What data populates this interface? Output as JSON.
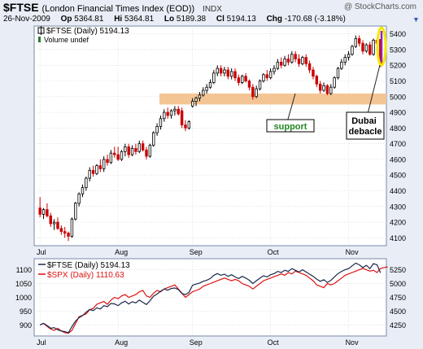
{
  "header": {
    "symbol": "$FTSE",
    "name": "(London Financial Times Index (EOD))",
    "exchange": "INDX",
    "watermark": "@ StockCharts.com",
    "date": "26-Nov-2009",
    "open_label": "Op",
    "open": "5364.81",
    "high_label": "Hi",
    "high": "5364.81",
    "low_label": "Lo",
    "low": "5189.38",
    "close_label": "Cl",
    "close": "5194.13",
    "change_label": "Chg",
    "change": "-170.68 (-3.18%)"
  },
  "colors": {
    "up": "#000000",
    "down": "#cc0000",
    "support_band": "#f4c594",
    "highlight": "#f2e900",
    "highlight_inner": "#9b1fb8",
    "spx_line": "#dd1111",
    "ftse_line": "#1a2a4a",
    "panel_bg": "#ffffff",
    "grid": "#c8d0dc",
    "annotation_green": "#228822"
  },
  "chart_data": [
    {
      "type": "candlestick",
      "title": "$FTSE (Daily) 5194.13",
      "legend": [
        "$FTSE (Daily) 5194.13",
        "Volume undef"
      ],
      "x_ticks": [
        "Jul",
        "Aug",
        "Sep",
        "Oct",
        "Nov"
      ],
      "y_ticks": [
        4100,
        4200,
        4300,
        4400,
        4500,
        4600,
        4700,
        4800,
        4900,
        5000,
        5100,
        5200,
        5300,
        5400
      ],
      "ylim": [
        4050,
        5450
      ],
      "support_band": [
        4950,
        5020
      ],
      "annotations": [
        {
          "text": "support"
        },
        {
          "text": "Dubai\ndebacle"
        }
      ],
      "grid": true,
      "candles": [
        {
          "o": 4290,
          "h": 4360,
          "l": 4230,
          "c": 4250
        },
        {
          "o": 4250,
          "h": 4290,
          "l": 4220,
          "c": 4280
        },
        {
          "o": 4280,
          "h": 4320,
          "l": 4230,
          "c": 4240
        },
        {
          "o": 4240,
          "h": 4260,
          "l": 4170,
          "c": 4190
        },
        {
          "o": 4190,
          "h": 4220,
          "l": 4150,
          "c": 4200
        },
        {
          "o": 4200,
          "h": 4230,
          "l": 4150,
          "c": 4160
        },
        {
          "o": 4160,
          "h": 4180,
          "l": 4120,
          "c": 4140
        },
        {
          "o": 4140,
          "h": 4170,
          "l": 4100,
          "c": 4130
        },
        {
          "o": 4130,
          "h": 4140,
          "l": 4080,
          "c": 4110
        },
        {
          "o": 4110,
          "h": 4230,
          "l": 4100,
          "c": 4220
        },
        {
          "o": 4220,
          "h": 4330,
          "l": 4210,
          "c": 4320
        },
        {
          "o": 4320,
          "h": 4390,
          "l": 4300,
          "c": 4380
        },
        {
          "o": 4380,
          "h": 4440,
          "l": 4360,
          "c": 4420
        },
        {
          "o": 4420,
          "h": 4490,
          "l": 4400,
          "c": 4480
        },
        {
          "o": 4480,
          "h": 4550,
          "l": 4460,
          "c": 4530
        },
        {
          "o": 4530,
          "h": 4560,
          "l": 4490,
          "c": 4510
        },
        {
          "o": 4510,
          "h": 4570,
          "l": 4500,
          "c": 4560
        },
        {
          "o": 4560,
          "h": 4600,
          "l": 4520,
          "c": 4540
        },
        {
          "o": 4540,
          "h": 4620,
          "l": 4520,
          "c": 4600
        },
        {
          "o": 4600,
          "h": 4630,
          "l": 4560,
          "c": 4580
        },
        {
          "o": 4580,
          "h": 4660,
          "l": 4570,
          "c": 4640
        },
        {
          "o": 4640,
          "h": 4680,
          "l": 4610,
          "c": 4630
        },
        {
          "o": 4630,
          "h": 4680,
          "l": 4590,
          "c": 4600
        },
        {
          "o": 4600,
          "h": 4660,
          "l": 4590,
          "c": 4650
        },
        {
          "o": 4650,
          "h": 4700,
          "l": 4620,
          "c": 4680
        },
        {
          "o": 4680,
          "h": 4700,
          "l": 4610,
          "c": 4630
        },
        {
          "o": 4630,
          "h": 4690,
          "l": 4620,
          "c": 4670
        },
        {
          "o": 4670,
          "h": 4700,
          "l": 4630,
          "c": 4650
        },
        {
          "o": 4650,
          "h": 4720,
          "l": 4640,
          "c": 4700
        },
        {
          "o": 4700,
          "h": 4720,
          "l": 4650,
          "c": 4660
        },
        {
          "o": 4660,
          "h": 4680,
          "l": 4600,
          "c": 4620
        },
        {
          "o": 4620,
          "h": 4700,
          "l": 4610,
          "c": 4690
        },
        {
          "o": 4690,
          "h": 4780,
          "l": 4680,
          "c": 4770
        },
        {
          "o": 4770,
          "h": 4830,
          "l": 4750,
          "c": 4810
        },
        {
          "o": 4810,
          "h": 4880,
          "l": 4790,
          "c": 4860
        },
        {
          "o": 4860,
          "h": 4920,
          "l": 4840,
          "c": 4900
        },
        {
          "o": 4900,
          "h": 4930,
          "l": 4860,
          "c": 4880
        },
        {
          "o": 4880,
          "h": 4920,
          "l": 4860,
          "c": 4910
        },
        {
          "o": 4910,
          "h": 4940,
          "l": 4880,
          "c": 4920
        },
        {
          "o": 4920,
          "h": 4940,
          "l": 4880,
          "c": 4890
        },
        {
          "o": 4910,
          "h": 4930,
          "l": 4800,
          "c": 4820
        },
        {
          "o": 4820,
          "h": 4850,
          "l": 4780,
          "c": 4800
        },
        {
          "o": 4800,
          "h": 4850,
          "l": 4790,
          "c": 4840
        },
        {
          "o": 4940,
          "h": 4990,
          "l": 4930,
          "c": 4970
        },
        {
          "o": 4970,
          "h": 5000,
          "l": 4940,
          "c": 4990
        },
        {
          "o": 4990,
          "h": 5030,
          "l": 4970,
          "c": 5010
        },
        {
          "o": 5010,
          "h": 5060,
          "l": 5000,
          "c": 5040
        },
        {
          "o": 5040,
          "h": 5080,
          "l": 5020,
          "c": 5060
        },
        {
          "o": 5060,
          "h": 5110,
          "l": 5050,
          "c": 5090
        },
        {
          "o": 5090,
          "h": 5170,
          "l": 5080,
          "c": 5150
        },
        {
          "o": 5150,
          "h": 5200,
          "l": 5130,
          "c": 5180
        },
        {
          "o": 5180,
          "h": 5200,
          "l": 5130,
          "c": 5150
        },
        {
          "o": 5150,
          "h": 5190,
          "l": 5130,
          "c": 5170
        },
        {
          "o": 5170,
          "h": 5190,
          "l": 5110,
          "c": 5130
        },
        {
          "o": 5130,
          "h": 5180,
          "l": 5110,
          "c": 5160
        },
        {
          "o": 5160,
          "h": 5180,
          "l": 5100,
          "c": 5120
        },
        {
          "o": 5120,
          "h": 5140,
          "l": 5070,
          "c": 5090
        },
        {
          "o": 5090,
          "h": 5140,
          "l": 5080,
          "c": 5130
        },
        {
          "o": 5130,
          "h": 5150,
          "l": 5090,
          "c": 5100
        },
        {
          "o": 5100,
          "h": 5110,
          "l": 5040,
          "c": 5060
        },
        {
          "o": 5060,
          "h": 5080,
          "l": 4980,
          "c": 5000
        },
        {
          "o": 5000,
          "h": 5070,
          "l": 4990,
          "c": 5050
        },
        {
          "o": 5050,
          "h": 5110,
          "l": 5040,
          "c": 5100
        },
        {
          "o": 5100,
          "h": 5150,
          "l": 5090,
          "c": 5140
        },
        {
          "o": 5140,
          "h": 5170,
          "l": 5100,
          "c": 5120
        },
        {
          "o": 5120,
          "h": 5180,
          "l": 5110,
          "c": 5160
        },
        {
          "o": 5160,
          "h": 5200,
          "l": 5140,
          "c": 5180
        },
        {
          "o": 5180,
          "h": 5240,
          "l": 5170,
          "c": 5220
        },
        {
          "o": 5220,
          "h": 5250,
          "l": 5180,
          "c": 5200
        },
        {
          "o": 5200,
          "h": 5260,
          "l": 5190,
          "c": 5240
        },
        {
          "o": 5240,
          "h": 5270,
          "l": 5200,
          "c": 5220
        },
        {
          "o": 5220,
          "h": 5290,
          "l": 5210,
          "c": 5270
        },
        {
          "o": 5270,
          "h": 5290,
          "l": 5220,
          "c": 5240
        },
        {
          "o": 5240,
          "h": 5270,
          "l": 5190,
          "c": 5210
        },
        {
          "o": 5210,
          "h": 5260,
          "l": 5200,
          "c": 5250
        },
        {
          "o": 5250,
          "h": 5270,
          "l": 5190,
          "c": 5210
        },
        {
          "o": 5210,
          "h": 5230,
          "l": 5150,
          "c": 5170
        },
        {
          "o": 5170,
          "h": 5190,
          "l": 5110,
          "c": 5130
        },
        {
          "o": 5130,
          "h": 5140,
          "l": 5060,
          "c": 5080
        },
        {
          "o": 5080,
          "h": 5100,
          "l": 5020,
          "c": 5040
        },
        {
          "o": 5040,
          "h": 5090,
          "l": 5030,
          "c": 5070
        },
        {
          "o": 5070,
          "h": 5080,
          "l": 5010,
          "c": 5020
        },
        {
          "o": 5020,
          "h": 5080,
          "l": 5010,
          "c": 5060
        },
        {
          "o": 5060,
          "h": 5130,
          "l": 5050,
          "c": 5120
        },
        {
          "o": 5120,
          "h": 5190,
          "l": 5110,
          "c": 5180
        },
        {
          "o": 5180,
          "h": 5240,
          "l": 5170,
          "c": 5220
        },
        {
          "o": 5220,
          "h": 5270,
          "l": 5200,
          "c": 5250
        },
        {
          "o": 5250,
          "h": 5290,
          "l": 5230,
          "c": 5270
        },
        {
          "o": 5270,
          "h": 5330,
          "l": 5260,
          "c": 5320
        },
        {
          "o": 5320,
          "h": 5390,
          "l": 5310,
          "c": 5370
        },
        {
          "o": 5370,
          "h": 5390,
          "l": 5320,
          "c": 5340
        },
        {
          "o": 5340,
          "h": 5360,
          "l": 5270,
          "c": 5290
        },
        {
          "o": 5290,
          "h": 5340,
          "l": 5280,
          "c": 5330
        },
        {
          "o": 5330,
          "h": 5350,
          "l": 5260,
          "c": 5270
        },
        {
          "o": 5270,
          "h": 5370,
          "l": 5260,
          "c": 5360
        },
        {
          "o": 5360,
          "h": 5380,
          "l": 5320,
          "c": 5340
        },
        {
          "o": 5364.81,
          "h": 5364.81,
          "l": 5189.38,
          "c": 5194.13
        }
      ]
    },
    {
      "type": "line",
      "x_ticks": [
        "Jul",
        "Aug",
        "Sep",
        "Oct",
        "Nov"
      ],
      "y_left_ticks": [
        900,
        950,
        1000,
        1050,
        1100
      ],
      "y_left_lim": [
        860,
        1140
      ],
      "y_right_ticks": [
        4250,
        4500,
        4750,
        5000,
        5250
      ],
      "y_right_lim": [
        4050,
        5450
      ],
      "legend": [
        "$FTSE (Daily) 5194.13",
        "$SPX (Daily) 1110.63"
      ],
      "grid": true,
      "series": [
        {
          "name": "$SPX (Daily) 1110.63",
          "values": [
            900,
            905,
            895,
            885,
            880,
            888,
            878,
            872,
            870,
            880,
            905,
            930,
            935,
            940,
            955,
            960,
            975,
            980,
            985,
            975,
            990,
            1000,
            995,
            1005,
            1010,
            1000,
            1005,
            1010,
            1020,
            1025,
            1005,
            1000,
            1015,
            1025,
            1020,
            1030,
            1035,
            1040,
            1045,
            1030,
            1015,
            1000,
            1010,
            1020,
            1025,
            1030,
            1040,
            1045,
            1050,
            1055,
            1060,
            1065,
            1070,
            1065,
            1060,
            1065,
            1060,
            1050,
            1045,
            1040,
            1030,
            1040,
            1050,
            1060,
            1065,
            1070,
            1075,
            1080,
            1085,
            1080,
            1090,
            1085,
            1095,
            1090,
            1085,
            1080,
            1070,
            1060,
            1045,
            1040,
            1035,
            1050,
            1045,
            1050,
            1060,
            1070,
            1080,
            1085,
            1090,
            1095,
            1100,
            1105,
            1100,
            1095,
            1098,
            1090,
            1105,
            1108,
            1110.63
          ]
        }
      ]
    }
  ]
}
